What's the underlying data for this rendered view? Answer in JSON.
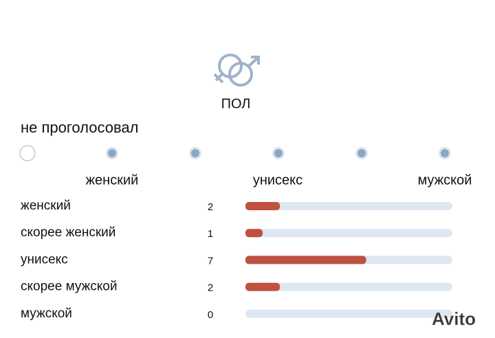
{
  "header": {
    "title": "ПОЛ",
    "status": "не проголосовал"
  },
  "scale": {
    "labels": [
      "женский",
      "унисекс",
      "мужской"
    ]
  },
  "results": {
    "rows": [
      {
        "label": "женский",
        "count": 2
      },
      {
        "label": "скорее женский",
        "count": 1
      },
      {
        "label": "унисекс",
        "count": 7
      },
      {
        "label": "скорее мужской",
        "count": 2
      },
      {
        "label": "мужской",
        "count": 0
      }
    ],
    "bar_color": "#c0503f",
    "track_color": "#dde7f1"
  },
  "watermark": "Avito"
}
